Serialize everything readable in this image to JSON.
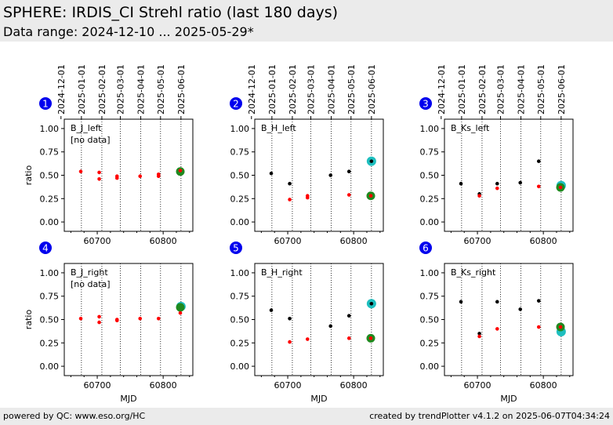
{
  "header": {
    "title": "SPHERE: IRDIS_CI Strehl ratio (last 180 days)",
    "subtitle": "Data range: 2024-12-10 ... 2025-05-29*"
  },
  "footer": {
    "left": "powered by QC: www.eso.org/HC",
    "right": "created by trendPlotter v4.1.2 on 2025-06-07T04:34:24"
  },
  "colors": {
    "black_points": "#000000",
    "red_points": "#ff0000",
    "latest_green": "#1f8a1f",
    "latest_cyan": "#1fbfbf",
    "badge": "#0000ee",
    "header_bg": "#ebebeb"
  },
  "chart_data": {
    "type": "scatter",
    "xlabel": "MJD",
    "ylabel": "ratio",
    "xlim": [
      60650,
      60845
    ],
    "ylim": [
      -0.1,
      1.1
    ],
    "x_ticks": [
      60700,
      60800
    ],
    "y_ticks": [
      "0.00",
      "0.25",
      "0.50",
      "0.75",
      "1.00"
    ],
    "date_ticks": [
      {
        "label": "2024-12-01",
        "mjd": 60645
      },
      {
        "label": "2025-01-01",
        "mjd": 60676
      },
      {
        "label": "2025-02-01",
        "mjd": 60707
      },
      {
        "label": "2025-03-01",
        "mjd": 60735
      },
      {
        "label": "2025-04-01",
        "mjd": 60766
      },
      {
        "label": "2025-05-01",
        "mjd": 60796
      },
      {
        "label": "2025-06-01",
        "mjd": 60827
      }
    ],
    "panels": [
      {
        "id": "1",
        "name": "B_J_left",
        "note": "[no data]",
        "black": [],
        "red": [
          [
            60675,
            0.54
          ],
          [
            60703,
            0.53
          ],
          [
            60703,
            0.46
          ],
          [
            60730,
            0.49
          ],
          [
            60730,
            0.47
          ],
          [
            60765,
            0.49
          ],
          [
            60793,
            0.51
          ],
          [
            60793,
            0.49
          ],
          [
            60826,
            0.55
          ]
        ],
        "latest_green": [
          60826,
          0.54
        ],
        "latest_cyan": null
      },
      {
        "id": "2",
        "name": "B_H_left",
        "note": "",
        "black": [
          [
            60675,
            0.52
          ],
          [
            60703,
            0.41
          ],
          [
            60765,
            0.5
          ],
          [
            60793,
            0.54
          ],
          [
            60827,
            0.65
          ]
        ],
        "red": [
          [
            60703,
            0.24
          ],
          [
            60730,
            0.28
          ],
          [
            60730,
            0.26
          ],
          [
            60793,
            0.29
          ],
          [
            60826,
            0.28
          ]
        ],
        "latest_green": [
          60826,
          0.28
        ],
        "latest_cyan": [
          60827,
          0.65
        ]
      },
      {
        "id": "3",
        "name": "B_Ks_left",
        "note": "",
        "black": [
          [
            60675,
            0.41
          ],
          [
            60703,
            0.3
          ],
          [
            60730,
            0.41
          ],
          [
            60765,
            0.42
          ],
          [
            60793,
            0.65
          ]
        ],
        "red": [
          [
            60703,
            0.28
          ],
          [
            60730,
            0.36
          ],
          [
            60793,
            0.38
          ],
          [
            60826,
            0.37
          ]
        ],
        "latest_green": [
          60826,
          0.37
        ],
        "latest_cyan": [
          60827,
          0.39
        ]
      },
      {
        "id": "4",
        "name": "B_J_right",
        "note": "[no data]",
        "black": [],
        "red": [
          [
            60675,
            0.51
          ],
          [
            60703,
            0.53
          ],
          [
            60703,
            0.47
          ],
          [
            60730,
            0.5
          ],
          [
            60730,
            0.49
          ],
          [
            60765,
            0.51
          ],
          [
            60793,
            0.51
          ],
          [
            60826,
            0.57
          ]
        ],
        "latest_green": [
          60826,
          0.63
        ],
        "latest_cyan": [
          60827,
          0.64
        ]
      },
      {
        "id": "5",
        "name": "B_H_right",
        "note": "",
        "black": [
          [
            60675,
            0.6
          ],
          [
            60703,
            0.51
          ],
          [
            60765,
            0.43
          ],
          [
            60793,
            0.54
          ],
          [
            60827,
            0.67
          ]
        ],
        "red": [
          [
            60703,
            0.26
          ],
          [
            60730,
            0.29
          ],
          [
            60793,
            0.3
          ],
          [
            60826,
            0.3
          ]
        ],
        "latest_green": [
          60826,
          0.3
        ],
        "latest_cyan": [
          60827,
          0.67
        ]
      },
      {
        "id": "6",
        "name": "B_Ks_right",
        "note": "",
        "black": [
          [
            60675,
            0.69
          ],
          [
            60703,
            0.35
          ],
          [
            60730,
            0.69
          ],
          [
            60765,
            0.61
          ],
          [
            60793,
            0.7
          ]
        ],
        "red": [
          [
            60703,
            0.32
          ],
          [
            60730,
            0.4
          ],
          [
            60793,
            0.42
          ],
          [
            60826,
            0.42
          ]
        ],
        "latest_green": [
          60826,
          0.42
        ],
        "latest_cyan": [
          60827,
          0.37
        ]
      }
    ]
  }
}
